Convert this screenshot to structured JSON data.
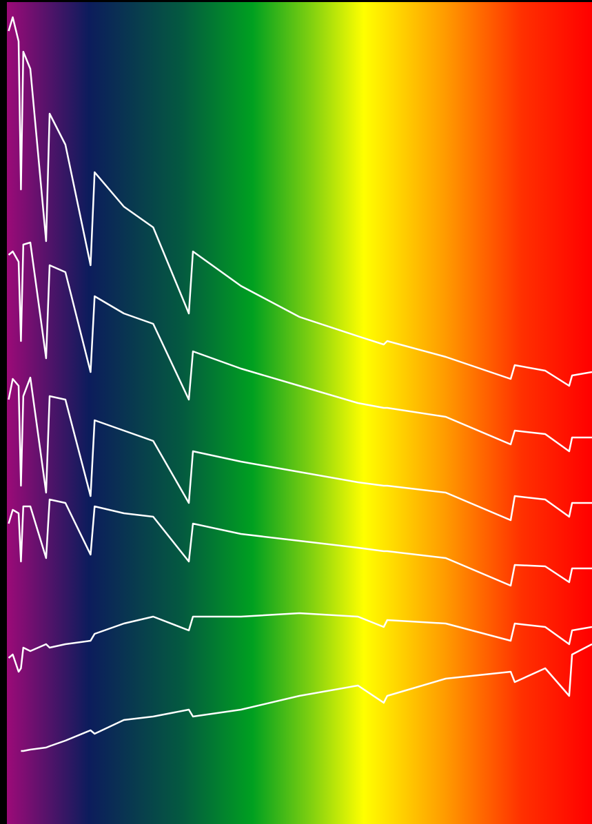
{
  "chart_data": {
    "type": "line",
    "x": [
      0.3,
      1,
      2,
      2.4,
      2.8,
      4,
      6.7,
      7.3,
      10,
      14.3,
      15,
      20,
      25,
      31.1,
      31.8,
      40,
      50,
      60,
      64.4,
      65,
      75,
      86.1,
      86.8,
      92,
      96.1,
      96.6,
      100
    ],
    "xlim": [
      0,
      100
    ],
    "ylim": [
      0,
      1196
    ],
    "series": [
      {
        "color": "#ffffff",
        "values": [
          1151,
          1171,
          1136,
          921,
          1121,
          1096,
          846,
          1031,
          986,
          811,
          946,
          896,
          866,
          741,
          831,
          781,
          736,
          708,
          696,
          701,
          678,
          646,
          666,
          658,
          636,
          651,
          656
        ]
      },
      {
        "color": "#ffffff",
        "values": [
          826,
          831,
          816,
          701,
          841,
          844,
          676,
          811,
          801,
          656,
          766,
          741,
          726,
          616,
          686,
          661,
          636,
          611,
          604,
          604,
          591,
          551,
          571,
          566,
          541,
          561,
          561
        ]
      },
      {
        "color": "#ffffff",
        "values": [
          616,
          646,
          636,
          491,
          621,
          648,
          481,
          621,
          616,
          476,
          586,
          571,
          556,
          466,
          541,
          526,
          511,
          496,
          491,
          491,
          481,
          441,
          476,
          471,
          446,
          466,
          466
        ]
      },
      {
        "color": "#ffffff",
        "values": [
          436,
          456,
          451,
          381,
          461,
          461,
          386,
          471,
          466,
          391,
          461,
          451,
          446,
          381,
          436,
          421,
          411,
          401,
          396,
          396,
          386,
          346,
          376,
          374,
          351,
          371,
          371
        ]
      },
      {
        "color": "#ffffff",
        "values": [
          241,
          246,
          221,
          226,
          256,
          251,
          261,
          256,
          261,
          266,
          276,
          291,
          301,
          281,
          301,
          301,
          306,
          301,
          286,
          296,
          291,
          266,
          291,
          286,
          261,
          281,
          286
        ]
      },
      {
        "color": "#ffffff",
        "values": [
          null,
          null,
          null,
          106,
          106,
          108,
          111,
          113,
          121,
          136,
          131,
          151,
          156,
          166,
          156,
          166,
          186,
          201,
          176,
          186,
          211,
          221,
          206,
          226,
          186,
          246,
          261
        ]
      }
    ]
  }
}
